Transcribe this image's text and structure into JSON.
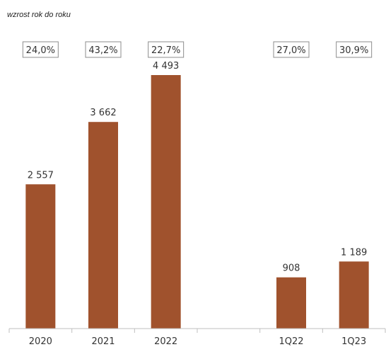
{
  "chart_data": {
    "type": "bar",
    "subtitle": "wzrost rok do roku",
    "categories": [
      "2020",
      "2021",
      "2022",
      "",
      "1Q22",
      "1Q23"
    ],
    "values": [
      2557,
      3662,
      4493,
      null,
      908,
      1189
    ],
    "value_labels": [
      "2 557",
      "3 662",
      "4 493",
      "",
      "908",
      "1 189"
    ],
    "growth_labels": [
      "24,0%",
      "43,2%",
      "22,7%",
      "",
      "27,0%",
      "30,9%"
    ],
    "ylim": [
      0,
      4800
    ],
    "grid": false,
    "legend": "none",
    "bar_color": "#A0522D",
    "axis_color": "#BFBFBF",
    "box_color": "#8C8C8C"
  }
}
